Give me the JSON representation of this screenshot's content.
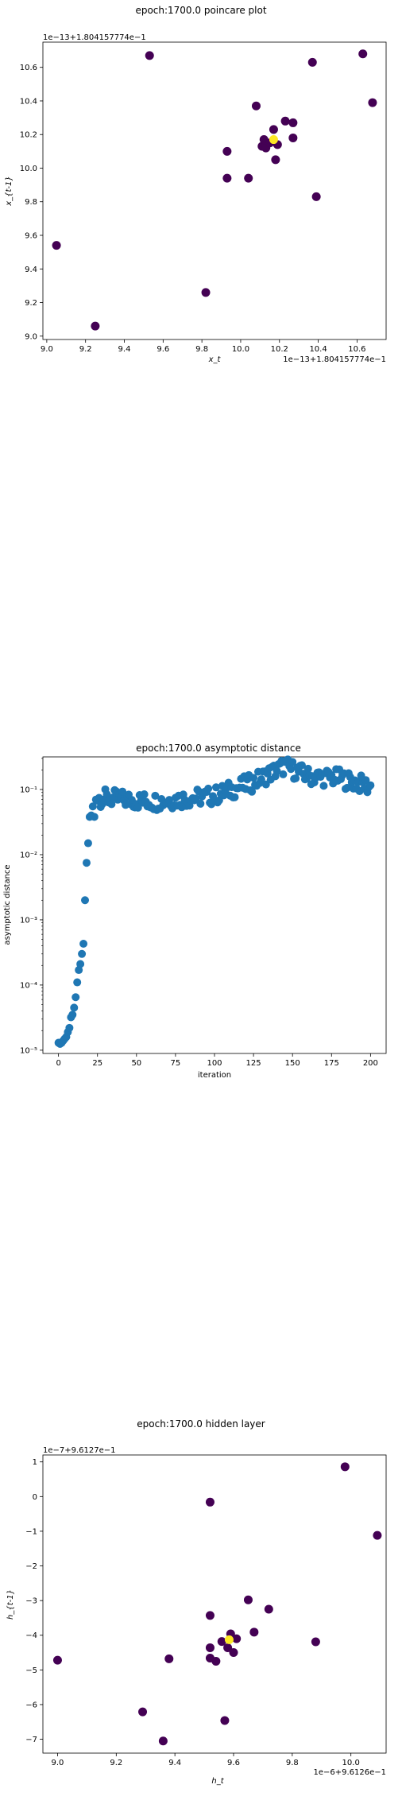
{
  "chart_data": [
    {
      "type": "scatter",
      "title": "epoch:1700.0 poincare plot",
      "xlabel": "x_t",
      "ylabel": "x_{t-1}",
      "x_offset_label": "1e−13+1.804157774e−1",
      "y_offset_label": "1e−13+1.804157774e−1",
      "xlim": [
        8.98,
        10.75
      ],
      "ylim": [
        8.98,
        10.75
      ],
      "xticks": [
        "9.0",
        "9.2",
        "9.4",
        "9.6",
        "9.8",
        "10.0",
        "10.2",
        "10.4",
        "10.6"
      ],
      "yticks": [
        "9.0",
        "9.2",
        "9.4",
        "9.6",
        "9.8",
        "10.0",
        "10.2",
        "10.4",
        "10.6"
      ],
      "colors": {
        "early": "#440154",
        "late": "#fde725"
      },
      "points": [
        {
          "x": 9.05,
          "y": 9.54,
          "c": "early"
        },
        {
          "x": 9.25,
          "y": 9.06,
          "c": "early"
        },
        {
          "x": 9.53,
          "y": 10.67,
          "c": "early"
        },
        {
          "x": 9.82,
          "y": 9.26,
          "c": "early"
        },
        {
          "x": 9.93,
          "y": 10.1,
          "c": "early"
        },
        {
          "x": 9.93,
          "y": 9.94,
          "c": "early"
        },
        {
          "x": 10.04,
          "y": 9.94,
          "c": "early"
        },
        {
          "x": 10.08,
          "y": 10.37,
          "c": "early"
        },
        {
          "x": 10.11,
          "y": 10.13,
          "c": "early"
        },
        {
          "x": 10.13,
          "y": 10.12,
          "c": "early"
        },
        {
          "x": 10.12,
          "y": 10.17,
          "c": "early"
        },
        {
          "x": 10.15,
          "y": 10.15,
          "c": "early"
        },
        {
          "x": 10.17,
          "y": 10.23,
          "c": "early"
        },
        {
          "x": 10.18,
          "y": 10.05,
          "c": "early"
        },
        {
          "x": 10.19,
          "y": 10.14,
          "c": "early"
        },
        {
          "x": 10.23,
          "y": 10.28,
          "c": "early"
        },
        {
          "x": 10.27,
          "y": 10.27,
          "c": "early"
        },
        {
          "x": 10.27,
          "y": 10.18,
          "c": "early"
        },
        {
          "x": 10.37,
          "y": 10.63,
          "c": "early"
        },
        {
          "x": 10.39,
          "y": 9.83,
          "c": "early"
        },
        {
          "x": 10.63,
          "y": 10.68,
          "c": "early"
        },
        {
          "x": 10.68,
          "y": 10.39,
          "c": "early"
        },
        {
          "x": 10.17,
          "y": 10.17,
          "c": "late"
        }
      ]
    },
    {
      "type": "scatter",
      "title": "epoch:1700.0 asymptotic distance",
      "xlabel": "iteration",
      "ylabel": "asymptotic distance",
      "xlim": [
        -10,
        210
      ],
      "ylim_log10": [
        -5.05,
        -0.5
      ],
      "yscale": "log",
      "xticks": [
        "0",
        "25",
        "50",
        "75",
        "100",
        "125",
        "150",
        "175",
        "200"
      ],
      "yticks": [
        "10⁻⁵",
        "10⁻⁴",
        "10⁻³",
        "10⁻²",
        "10⁻¹"
      ],
      "color": "#1f77b4",
      "rise": [
        [
          0,
          1.3e-05
        ],
        [
          1,
          1.25e-05
        ],
        [
          2,
          1.3e-05
        ],
        [
          3,
          1.4e-05
        ],
        [
          4,
          1.5e-05
        ],
        [
          5,
          1.6e-05
        ],
        [
          6,
          1.9e-05
        ],
        [
          7,
          2.2e-05
        ],
        [
          8,
          3.2e-05
        ],
        [
          9,
          3.5e-05
        ],
        [
          10,
          4.5e-05
        ],
        [
          11,
          6.5e-05
        ],
        [
          12,
          0.00011
        ],
        [
          13,
          0.00017
        ],
        [
          14,
          0.00021
        ],
        [
          15,
          0.0003
        ],
        [
          16,
          0.00043
        ],
        [
          17,
          0.002
        ],
        [
          18,
          0.0075
        ],
        [
          19,
          0.015
        ],
        [
          20,
          0.038
        ],
        [
          21,
          0.04
        ],
        [
          22,
          0.055
        ],
        [
          23,
          0.038
        ],
        [
          24,
          0.07
        ]
      ],
      "trend": [
        [
          25,
          0.075
        ],
        [
          60,
          0.065
        ],
        [
          100,
          0.08
        ],
        [
          125,
          0.13
        ],
        [
          145,
          0.23
        ],
        [
          160,
          0.16
        ],
        [
          180,
          0.15
        ],
        [
          200,
          0.11
        ]
      ]
    },
    {
      "type": "scatter",
      "title": "epoch:1700.0 hidden layer",
      "xlabel": "h_t",
      "ylabel": "h_{t-1}",
      "x_offset_label": "1e−6+9.6126e−1",
      "y_offset_label": "1e−7+9.6127e−1",
      "xlim": [
        8.95,
        10.12
      ],
      "ylim": [
        -7.4,
        1.2
      ],
      "xticks": [
        "9.0",
        "9.2",
        "9.4",
        "9.6",
        "9.8",
        "10.0"
      ],
      "yticks": [
        "1",
        "0",
        "−1",
        "−2",
        "−3",
        "−4",
        "−5",
        "−6",
        "−7"
      ],
      "colors": {
        "early": "#440154",
        "late": "#fde725"
      },
      "points": [
        {
          "x": 9.0,
          "y": -4.72,
          "c": "early"
        },
        {
          "x": 9.29,
          "y": -6.21,
          "c": "early"
        },
        {
          "x": 9.36,
          "y": -7.05,
          "c": "early"
        },
        {
          "x": 9.38,
          "y": -4.68,
          "c": "early"
        },
        {
          "x": 9.52,
          "y": -0.16,
          "c": "early"
        },
        {
          "x": 9.52,
          "y": -3.43,
          "c": "early"
        },
        {
          "x": 9.52,
          "y": -4.66,
          "c": "early"
        },
        {
          "x": 9.52,
          "y": -4.36,
          "c": "early"
        },
        {
          "x": 9.54,
          "y": -4.75,
          "c": "early"
        },
        {
          "x": 9.56,
          "y": -4.18,
          "c": "early"
        },
        {
          "x": 9.57,
          "y": -6.46,
          "c": "early"
        },
        {
          "x": 9.58,
          "y": -4.36,
          "c": "early"
        },
        {
          "x": 9.59,
          "y": -3.96,
          "c": "early"
        },
        {
          "x": 9.6,
          "y": -4.5,
          "c": "early"
        },
        {
          "x": 9.61,
          "y": -4.1,
          "c": "early"
        },
        {
          "x": 9.65,
          "y": -2.98,
          "c": "early"
        },
        {
          "x": 9.67,
          "y": -3.91,
          "c": "early"
        },
        {
          "x": 9.72,
          "y": -3.25,
          "c": "early"
        },
        {
          "x": 9.88,
          "y": -4.19,
          "c": "early"
        },
        {
          "x": 9.98,
          "y": 0.86,
          "c": "early"
        },
        {
          "x": 10.09,
          "y": -1.12,
          "c": "early"
        },
        {
          "x": 9.585,
          "y": -4.13,
          "c": "late"
        }
      ]
    }
  ]
}
